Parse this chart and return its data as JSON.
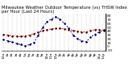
{
  "title": "Milwaukee Weather Outdoor Temperature (vs) THSW Index per Hour (Last 24 Hours)",
  "hours": [
    0,
    1,
    2,
    3,
    4,
    5,
    6,
    7,
    8,
    9,
    10,
    11,
    12,
    13,
    14,
    15,
    16,
    17,
    18,
    19,
    20,
    21,
    22,
    23
  ],
  "outdoor_temp": [
    32,
    30,
    28,
    27,
    26,
    28,
    30,
    34,
    38,
    42,
    44,
    46,
    47,
    48,
    46,
    44,
    42,
    40,
    38,
    38,
    42,
    44,
    44,
    43
  ],
  "thsw_index": [
    18,
    15,
    12,
    8,
    5,
    2,
    5,
    10,
    30,
    50,
    65,
    72,
    78,
    72,
    60,
    48,
    30,
    20,
    15,
    12,
    25,
    32,
    38,
    42
  ],
  "ylim": [
    -10,
    85
  ],
  "ytick_vals": [
    80,
    70,
    60,
    50,
    40,
    30,
    20,
    10,
    0,
    -10
  ],
  "ytick_labels": [
    "80",
    "70",
    "60",
    "50",
    "40",
    "30",
    "20",
    "10",
    "0",
    "-10"
  ],
  "temp_color": "#dd0000",
  "thsw_color": "#0000dd",
  "dot_color": "#000000",
  "bg_color": "#ffffff",
  "grid_color": "#888888",
  "title_fontsize": 3.8,
  "tick_fontsize": 3.2
}
